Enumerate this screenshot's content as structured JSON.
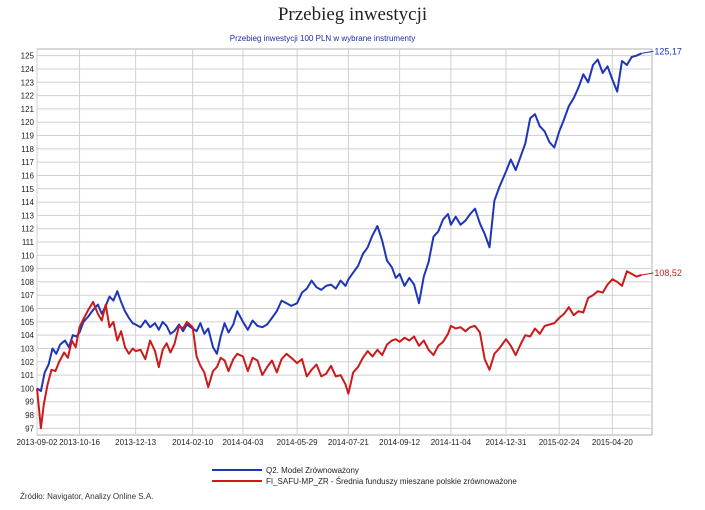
{
  "page": {
    "title": "Przebieg inwestycji",
    "source": "Źródło: Navigator, Analizy Online S.A."
  },
  "chart_data": {
    "type": "line",
    "title": "Przebieg inwestycji 100 PLN w wybrane instrumenty",
    "xlabel": "",
    "ylabel": "",
    "ylim": [
      96.5,
      125.5
    ],
    "xlim": [
      "2013-09-02",
      "2015-05-31"
    ],
    "yticks": [
      97,
      98,
      99,
      100,
      101,
      102,
      103,
      104,
      105,
      106,
      107,
      108,
      109,
      110,
      111,
      112,
      113,
      114,
      115,
      116,
      117,
      118,
      119,
      120,
      121,
      122,
      123,
      124,
      125
    ],
    "xticks": [
      "2013-09-02",
      "2013-10-16",
      "2013-12-13",
      "2014-02-10",
      "2014-04-03",
      "2014-05-29",
      "2014-07-21",
      "2014-09-12",
      "2014-11-04",
      "2014-12-31",
      "2015-02-24",
      "2015-04-20"
    ],
    "grid": true,
    "legend_position": "bottom",
    "colors": {
      "model": "#1f35b8",
      "fund": "#cc1a1a",
      "grid": "#d0d0d0"
    },
    "series": [
      {
        "name": "Q2. Model Zrównoważony",
        "end_label": "125,17",
        "values": [
          [
            "2013-09-02",
            100.0
          ],
          [
            "2013-09-06",
            99.8
          ],
          [
            "2013-09-10",
            101.2
          ],
          [
            "2013-09-14",
            101.8
          ],
          [
            "2013-09-18",
            103.0
          ],
          [
            "2013-09-22",
            102.6
          ],
          [
            "2013-09-26",
            103.3
          ],
          [
            "2013-10-01",
            103.6
          ],
          [
            "2013-10-05",
            103.1
          ],
          [
            "2013-10-09",
            104.0
          ],
          [
            "2013-10-13",
            103.9
          ],
          [
            "2013-10-16",
            104.2
          ],
          [
            "2013-10-20",
            105.0
          ],
          [
            "2013-10-25",
            105.4
          ],
          [
            "2013-10-30",
            105.9
          ],
          [
            "2013-11-04",
            106.3
          ],
          [
            "2013-11-08",
            105.6
          ],
          [
            "2013-11-12",
            106.2
          ],
          [
            "2013-11-16",
            106.9
          ],
          [
            "2013-11-20",
            106.6
          ],
          [
            "2013-11-24",
            107.3
          ],
          [
            "2013-11-28",
            106.5
          ],
          [
            "2013-12-02",
            105.8
          ],
          [
            "2013-12-06",
            105.3
          ],
          [
            "2013-12-10",
            104.9
          ],
          [
            "2013-12-13",
            104.8
          ],
          [
            "2013-12-18",
            104.6
          ],
          [
            "2013-12-23",
            105.1
          ],
          [
            "2013-12-28",
            104.6
          ],
          [
            "2014-01-02",
            104.9
          ],
          [
            "2014-01-06",
            104.4
          ],
          [
            "2014-01-10",
            105.0
          ],
          [
            "2014-01-14",
            104.7
          ],
          [
            "2014-01-18",
            104.1
          ],
          [
            "2014-01-22",
            104.3
          ],
          [
            "2014-01-27",
            104.8
          ],
          [
            "2014-01-31",
            104.3
          ],
          [
            "2014-02-04",
            104.8
          ],
          [
            "2014-02-10",
            104.5
          ],
          [
            "2014-02-14",
            104.3
          ],
          [
            "2014-02-18",
            104.9
          ],
          [
            "2014-02-22",
            104.1
          ],
          [
            "2014-02-26",
            104.5
          ],
          [
            "2014-03-03",
            103.1
          ],
          [
            "2014-03-07",
            102.6
          ],
          [
            "2014-03-11",
            103.9
          ],
          [
            "2014-03-15",
            104.9
          ],
          [
            "2014-03-19",
            104.2
          ],
          [
            "2014-03-24",
            104.8
          ],
          [
            "2014-03-28",
            105.8
          ],
          [
            "2014-04-03",
            105.0
          ],
          [
            "2014-04-08",
            104.4
          ],
          [
            "2014-04-13",
            105.1
          ],
          [
            "2014-04-18",
            104.7
          ],
          [
            "2014-04-23",
            104.6
          ],
          [
            "2014-04-28",
            104.8
          ],
          [
            "2014-05-03",
            105.3
          ],
          [
            "2014-05-08",
            105.8
          ],
          [
            "2014-05-13",
            106.6
          ],
          [
            "2014-05-18",
            106.4
          ],
          [
            "2014-05-23",
            106.2
          ],
          [
            "2014-05-29",
            106.4
          ],
          [
            "2014-06-03",
            107.2
          ],
          [
            "2014-06-08",
            107.5
          ],
          [
            "2014-06-13",
            108.1
          ],
          [
            "2014-06-18",
            107.6
          ],
          [
            "2014-06-23",
            107.4
          ],
          [
            "2014-06-28",
            107.7
          ],
          [
            "2014-07-03",
            107.8
          ],
          [
            "2014-07-08",
            107.5
          ],
          [
            "2014-07-13",
            108.1
          ],
          [
            "2014-07-18",
            107.7
          ],
          [
            "2014-07-21",
            108.2
          ],
          [
            "2014-07-26",
            108.7
          ],
          [
            "2014-07-31",
            109.2
          ],
          [
            "2014-08-05",
            110.1
          ],
          [
            "2014-08-10",
            110.6
          ],
          [
            "2014-08-15",
            111.5
          ],
          [
            "2014-08-20",
            112.2
          ],
          [
            "2014-08-25",
            111.1
          ],
          [
            "2014-08-30",
            109.6
          ],
          [
            "2014-09-04",
            109.1
          ],
          [
            "2014-09-08",
            108.3
          ],
          [
            "2014-09-12",
            108.6
          ],
          [
            "2014-09-17",
            107.7
          ],
          [
            "2014-09-22",
            108.3
          ],
          [
            "2014-09-27",
            107.8
          ],
          [
            "2014-10-02",
            106.4
          ],
          [
            "2014-10-07",
            108.4
          ],
          [
            "2014-10-12",
            109.5
          ],
          [
            "2014-10-17",
            111.4
          ],
          [
            "2014-10-22",
            111.8
          ],
          [
            "2014-10-27",
            112.7
          ],
          [
            "2014-11-01",
            113.1
          ],
          [
            "2014-11-04",
            112.3
          ],
          [
            "2014-11-09",
            112.9
          ],
          [
            "2014-11-14",
            112.3
          ],
          [
            "2014-11-19",
            112.6
          ],
          [
            "2014-11-24",
            113.1
          ],
          [
            "2014-11-29",
            113.5
          ],
          [
            "2014-12-04",
            112.4
          ],
          [
            "2014-12-09",
            111.6
          ],
          [
            "2014-12-14",
            110.6
          ],
          [
            "2014-12-19",
            114.1
          ],
          [
            "2014-12-24",
            115.1
          ],
          [
            "2014-12-31",
            116.3
          ],
          [
            "2015-01-05",
            117.2
          ],
          [
            "2015-01-10",
            116.4
          ],
          [
            "2015-01-15",
            117.4
          ],
          [
            "2015-01-20",
            118.4
          ],
          [
            "2015-01-25",
            120.3
          ],
          [
            "2015-01-30",
            120.6
          ],
          [
            "2015-02-04",
            119.7
          ],
          [
            "2015-02-09",
            119.3
          ],
          [
            "2015-02-14",
            118.5
          ],
          [
            "2015-02-19",
            118.1
          ],
          [
            "2015-02-24",
            119.3
          ],
          [
            "2015-03-01",
            120.2
          ],
          [
            "2015-03-06",
            121.2
          ],
          [
            "2015-03-11",
            121.8
          ],
          [
            "2015-03-16",
            122.6
          ],
          [
            "2015-03-21",
            123.6
          ],
          [
            "2015-03-26",
            123.0
          ],
          [
            "2015-03-31",
            124.3
          ],
          [
            "2015-04-05",
            124.7
          ],
          [
            "2015-04-10",
            123.7
          ],
          [
            "2015-04-15",
            124.2
          ],
          [
            "2015-04-20",
            123.2
          ],
          [
            "2015-04-25",
            122.3
          ],
          [
            "2015-04-30",
            124.6
          ],
          [
            "2015-05-05",
            124.3
          ],
          [
            "2015-05-10",
            124.9
          ],
          [
            "2015-05-15",
            125.0
          ],
          [
            "2015-05-20",
            125.17
          ]
        ]
      },
      {
        "name": "FI_SAFU-MP_ZR - Średnia funduszy mieszane polskie zrównoważone",
        "end_label": "108,52",
        "values": [
          [
            "2013-09-02",
            100.0
          ],
          [
            "2013-09-06",
            97.0
          ],
          [
            "2013-09-09",
            98.8
          ],
          [
            "2013-09-13",
            100.3
          ],
          [
            "2013-09-17",
            101.4
          ],
          [
            "2013-09-21",
            101.3
          ],
          [
            "2013-09-25",
            102.0
          ],
          [
            "2013-09-30",
            102.7
          ],
          [
            "2013-10-04",
            102.3
          ],
          [
            "2013-10-08",
            103.6
          ],
          [
            "2013-10-12",
            103.1
          ],
          [
            "2013-10-16",
            104.6
          ],
          [
            "2013-10-20",
            105.2
          ],
          [
            "2013-10-25",
            105.9
          ],
          [
            "2013-10-30",
            106.5
          ],
          [
            "2013-11-04",
            105.6
          ],
          [
            "2013-11-08",
            105.1
          ],
          [
            "2013-11-12",
            106.3
          ],
          [
            "2013-11-16",
            104.6
          ],
          [
            "2013-11-20",
            105.0
          ],
          [
            "2013-11-24",
            103.6
          ],
          [
            "2013-11-28",
            104.3
          ],
          [
            "2013-12-02",
            103.1
          ],
          [
            "2013-12-06",
            102.6
          ],
          [
            "2013-12-10",
            103.0
          ],
          [
            "2013-12-13",
            102.8
          ],
          [
            "2013-12-18",
            102.9
          ],
          [
            "2013-12-23",
            102.2
          ],
          [
            "2013-12-28",
            103.6
          ],
          [
            "2014-01-02",
            102.8
          ],
          [
            "2014-01-06",
            101.6
          ],
          [
            "2014-01-10",
            102.9
          ],
          [
            "2014-01-14",
            103.4
          ],
          [
            "2014-01-18",
            102.7
          ],
          [
            "2014-01-22",
            103.3
          ],
          [
            "2014-01-27",
            104.7
          ],
          [
            "2014-01-31",
            104.5
          ],
          [
            "2014-02-04",
            105.0
          ],
          [
            "2014-02-10",
            104.6
          ],
          [
            "2014-02-14",
            102.4
          ],
          [
            "2014-02-18",
            101.7
          ],
          [
            "2014-02-22",
            101.2
          ],
          [
            "2014-02-26",
            100.1
          ],
          [
            "2014-03-03",
            101.3
          ],
          [
            "2014-03-07",
            101.6
          ],
          [
            "2014-03-11",
            102.3
          ],
          [
            "2014-03-15",
            102.1
          ],
          [
            "2014-03-19",
            101.3
          ],
          [
            "2014-03-24",
            102.2
          ],
          [
            "2014-03-28",
            102.6
          ],
          [
            "2014-04-03",
            102.4
          ],
          [
            "2014-04-08",
            101.3
          ],
          [
            "2014-04-13",
            102.3
          ],
          [
            "2014-04-18",
            102.1
          ],
          [
            "2014-04-23",
            101.0
          ],
          [
            "2014-04-28",
            101.6
          ],
          [
            "2014-05-03",
            102.1
          ],
          [
            "2014-05-08",
            101.2
          ],
          [
            "2014-05-13",
            102.2
          ],
          [
            "2014-05-18",
            102.6
          ],
          [
            "2014-05-23",
            102.3
          ],
          [
            "2014-05-29",
            101.9
          ],
          [
            "2014-06-03",
            102.2
          ],
          [
            "2014-06-08",
            100.9
          ],
          [
            "2014-06-13",
            101.4
          ],
          [
            "2014-06-18",
            101.8
          ],
          [
            "2014-06-23",
            100.9
          ],
          [
            "2014-06-28",
            101.1
          ],
          [
            "2014-07-03",
            101.7
          ],
          [
            "2014-07-08",
            100.9
          ],
          [
            "2014-07-13",
            101.0
          ],
          [
            "2014-07-18",
            100.3
          ],
          [
            "2014-07-21",
            99.6
          ],
          [
            "2014-07-26",
            101.2
          ],
          [
            "2014-07-31",
            101.6
          ],
          [
            "2014-08-05",
            102.3
          ],
          [
            "2014-08-10",
            102.8
          ],
          [
            "2014-08-15",
            102.4
          ],
          [
            "2014-08-20",
            102.9
          ],
          [
            "2014-08-25",
            102.5
          ],
          [
            "2014-08-30",
            103.3
          ],
          [
            "2014-09-04",
            103.6
          ],
          [
            "2014-09-08",
            103.7
          ],
          [
            "2014-09-12",
            103.5
          ],
          [
            "2014-09-17",
            103.8
          ],
          [
            "2014-09-22",
            103.6
          ],
          [
            "2014-09-27",
            103.9
          ],
          [
            "2014-10-02",
            103.2
          ],
          [
            "2014-10-07",
            103.6
          ],
          [
            "2014-10-12",
            102.9
          ],
          [
            "2014-10-17",
            102.5
          ],
          [
            "2014-10-22",
            103.2
          ],
          [
            "2014-10-27",
            103.5
          ],
          [
            "2014-11-01",
            104.1
          ],
          [
            "2014-11-04",
            104.7
          ],
          [
            "2014-11-09",
            104.5
          ],
          [
            "2014-11-14",
            104.6
          ],
          [
            "2014-11-19",
            104.3
          ],
          [
            "2014-11-24",
            104.6
          ],
          [
            "2014-11-29",
            104.7
          ],
          [
            "2014-12-04",
            104.2
          ],
          [
            "2014-12-09",
            102.2
          ],
          [
            "2014-12-14",
            101.4
          ],
          [
            "2014-12-19",
            102.6
          ],
          [
            "2014-12-24",
            103.0
          ],
          [
            "2014-12-31",
            103.7
          ],
          [
            "2015-01-05",
            103.2
          ],
          [
            "2015-01-10",
            102.5
          ],
          [
            "2015-01-15",
            103.3
          ],
          [
            "2015-01-20",
            104.0
          ],
          [
            "2015-01-25",
            103.9
          ],
          [
            "2015-01-30",
            104.5
          ],
          [
            "2015-02-04",
            104.1
          ],
          [
            "2015-02-09",
            104.7
          ],
          [
            "2015-02-14",
            104.8
          ],
          [
            "2015-02-19",
            104.9
          ],
          [
            "2015-02-24",
            105.3
          ],
          [
            "2015-03-01",
            105.6
          ],
          [
            "2015-03-06",
            106.1
          ],
          [
            "2015-03-11",
            105.5
          ],
          [
            "2015-03-16",
            105.8
          ],
          [
            "2015-03-21",
            105.7
          ],
          [
            "2015-03-26",
            106.8
          ],
          [
            "2015-03-31",
            107.0
          ],
          [
            "2015-04-05",
            107.3
          ],
          [
            "2015-04-10",
            107.2
          ],
          [
            "2015-04-15",
            107.8
          ],
          [
            "2015-04-20",
            108.2
          ],
          [
            "2015-04-25",
            108.0
          ],
          [
            "2015-04-30",
            107.7
          ],
          [
            "2015-05-05",
            108.8
          ],
          [
            "2015-05-10",
            108.6
          ],
          [
            "2015-05-15",
            108.4
          ],
          [
            "2015-05-20",
            108.52
          ]
        ]
      }
    ]
  }
}
